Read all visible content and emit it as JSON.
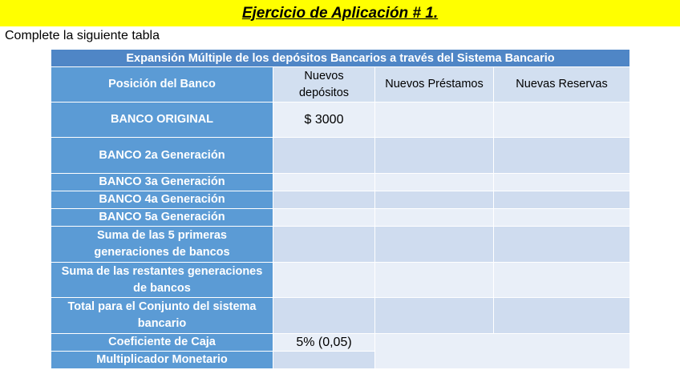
{
  "title": "Ejercicio de Aplicación # 1.",
  "instruction": "Complete la siguiente tabla",
  "table": {
    "caption": "Expansión Múltiple de los depósitos Bancarios a través del Sistema Bancario",
    "headers": {
      "position": "Posición del Banco",
      "deposits_l1": "Nuevos",
      "deposits_l2": "depósitos",
      "loans": "Nuevos Préstamos",
      "reserves": "Nuevas Reservas"
    },
    "rows": [
      {
        "label": "BANCO ORIGINAL",
        "deposits": "$ 3000"
      },
      {
        "label": "BANCO 2a Generación",
        "deposits": ""
      },
      {
        "label": "BANCO 3a Generación",
        "deposits": ""
      },
      {
        "label": "BANCO 4a Generación",
        "deposits": ""
      },
      {
        "label": "BANCO 5a Generación",
        "deposits": ""
      },
      {
        "label_l1": "Suma de las 5 primeras",
        "label_l2": "generaciones de bancos",
        "deposits": ""
      },
      {
        "label_l1": "Suma de las restantes generaciones",
        "label_l2": "de bancos",
        "deposits": ""
      },
      {
        "label_l1": "Total para el Conjunto del sistema",
        "label_l2": "bancario",
        "deposits": ""
      }
    ],
    "coeficiente": {
      "label": "Coeficiente de Caja",
      "value": "5% (0,05)"
    },
    "multiplicador": {
      "label": "Multiplicador Monetario",
      "value": ""
    }
  }
}
